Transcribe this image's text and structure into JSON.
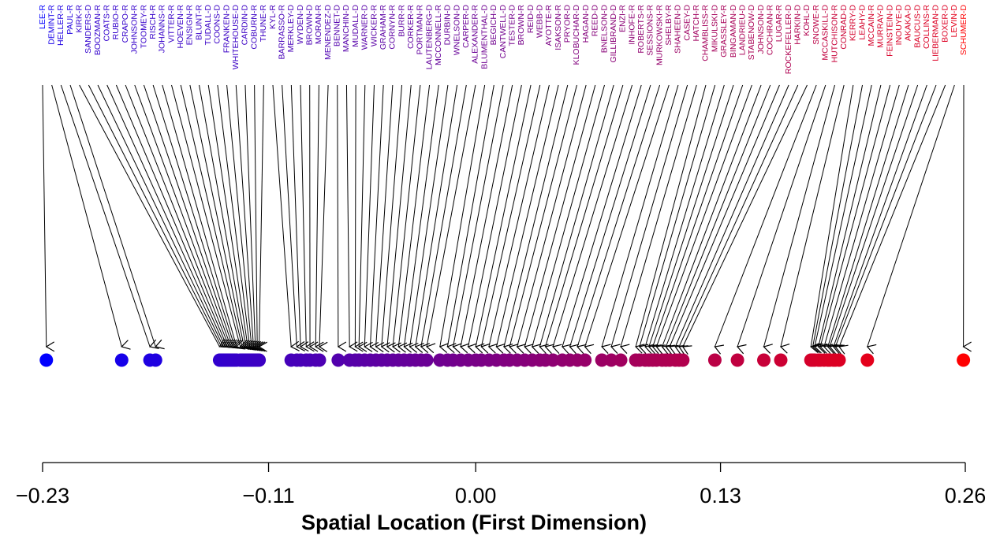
{
  "chart_data": {
    "type": "strip",
    "xlabel": "Spatial Location (First Dimension)",
    "categories": [
      "LEE-R",
      "DEMINT-R",
      "HELLER-R",
      "PAUL-R",
      "KIRK-R",
      "SANDERS-D",
      "BOOZMAN-R",
      "COATS-R",
      "RUBIO-R",
      "CRAPO-R",
      "JOHNSON-R",
      "TOOMEY-R",
      "RISCH-R",
      "JOHANNS-R",
      "VITTER-R",
      "HOEVEN-R",
      "ENSIGN-R",
      "BLUNT-R",
      "TUDALL-D",
      "COONS-D",
      "FRANKEN-D",
      "WHITEHOUSE-D",
      "CARDIN-D",
      "COBURN-R",
      "THUNE-R",
      "KYL-R",
      "BARRASSO-R",
      "MERKLEY-D",
      "WYDEN-D",
      "BROWN-D",
      "MORAN-R",
      "MENENDEZ-D",
      "BENNET-D",
      "MANCHIN-D",
      "MUDALL-D",
      "WARNER-D",
      "WICKER-R",
      "GRAHAM-R",
      "CORNYN-R",
      "BURR-R",
      "CORKER-R",
      "PORTMAN-R",
      "LAUTENBERG-D",
      "MCCONNELL-R",
      "DURBIN-D",
      "WNELSON-D",
      "CARPER-D",
      "ALEXANDER-R",
      "BLUMENTHAL-D",
      "BEGICH-D",
      "CANTWELL-D",
      "TESTER-D",
      "BROWN-R",
      "REID-D",
      "WEBB-D",
      "AYOTTE-R",
      "ISAKSON-R",
      "PRYOR-D",
      "KLOBUCHAR-D",
      "HAGAN-D",
      "REED-D",
      "BNELSON-D",
      "GILLIBRAND-D",
      "ENZI-R",
      "INHOFE-R",
      "ROBERTS-R",
      "SESSIONS-R",
      "MURKOWSKI-R",
      "SHELBY-R",
      "SHAHEEN-D",
      "CASEY-D",
      "HATCH-R",
      "CHAMBLISS-R",
      "MIKULSKI-D",
      "GRASSLEY-R",
      "BINGAMAN-D",
      "LANDRIEU-D",
      "STABENOW-D",
      "JOHNSON-D",
      "COCHRAN-R",
      "LUGAR-R",
      "ROCKEFELLER-D",
      "HARKIN-D",
      "KOHL-D",
      "SNOWE-R",
      "MCCASKILL-D",
      "HUTCHISON-R",
      "CONRAD-D",
      "KERRY-D",
      "LEAHY-D",
      "MCCAIN-R",
      "MURRAY-D",
      "FEINSTEIN-D",
      "INOUYE-D",
      "AKAKA-D",
      "BAUCUS-D",
      "COLLINS-R",
      "LIEBERMAN-D",
      "BOXER-D",
      "LEVIN-D",
      "SCHUMER-D"
    ],
    "values": [
      -0.228,
      -0.188,
      -0.173,
      -0.17,
      -0.136,
      -0.135,
      -0.134,
      -0.133,
      -0.132,
      -0.131,
      -0.13,
      -0.129,
      -0.128,
      -0.127,
      -0.125,
      -0.124,
      -0.123,
      -0.122,
      -0.121,
      -0.12,
      -0.119,
      -0.118,
      -0.117,
      -0.116,
      -0.115,
      -0.098,
      -0.095,
      -0.093,
      -0.09,
      -0.088,
      -0.085,
      -0.083,
      -0.073,
      -0.067,
      -0.064,
      -0.062,
      -0.059,
      -0.056,
      -0.053,
      -0.05,
      -0.047,
      -0.044,
      -0.041,
      -0.038,
      -0.035,
      -0.032,
      -0.029,
      -0.026,
      -0.019,
      -0.015,
      -0.012,
      -0.008,
      -0.004,
      0.0,
      0.003,
      0.007,
      0.011,
      0.015,
      0.018,
      0.022,
      0.026,
      0.03,
      0.034,
      0.037,
      0.041,
      0.046,
      0.05,
      0.054,
      0.058,
      0.067,
      0.072,
      0.077,
      0.085,
      0.087,
      0.09,
      0.092,
      0.094,
      0.096,
      0.099,
      0.101,
      0.103,
      0.106,
      0.108,
      0.11,
      0.127,
      0.139,
      0.153,
      0.162,
      0.178,
      0.179,
      0.18,
      0.182,
      0.183,
      0.185,
      0.187,
      0.188,
      0.19,
      0.191,
      0.193,
      0.208,
      0.259
    ],
    "xlim": [
      -0.23,
      0.26
    ],
    "xticks": [
      {
        "value": -0.23,
        "label": "−0.23"
      },
      {
        "value": -0.11,
        "label": "−0.11"
      },
      {
        "value": 0,
        "label": "0.00"
      },
      {
        "value": 0.13,
        "label": "0.13"
      },
      {
        "value": 0.26,
        "label": "0.26"
      }
    ],
    "color_low": "#0000ff",
    "color_high": "#ff0000"
  }
}
